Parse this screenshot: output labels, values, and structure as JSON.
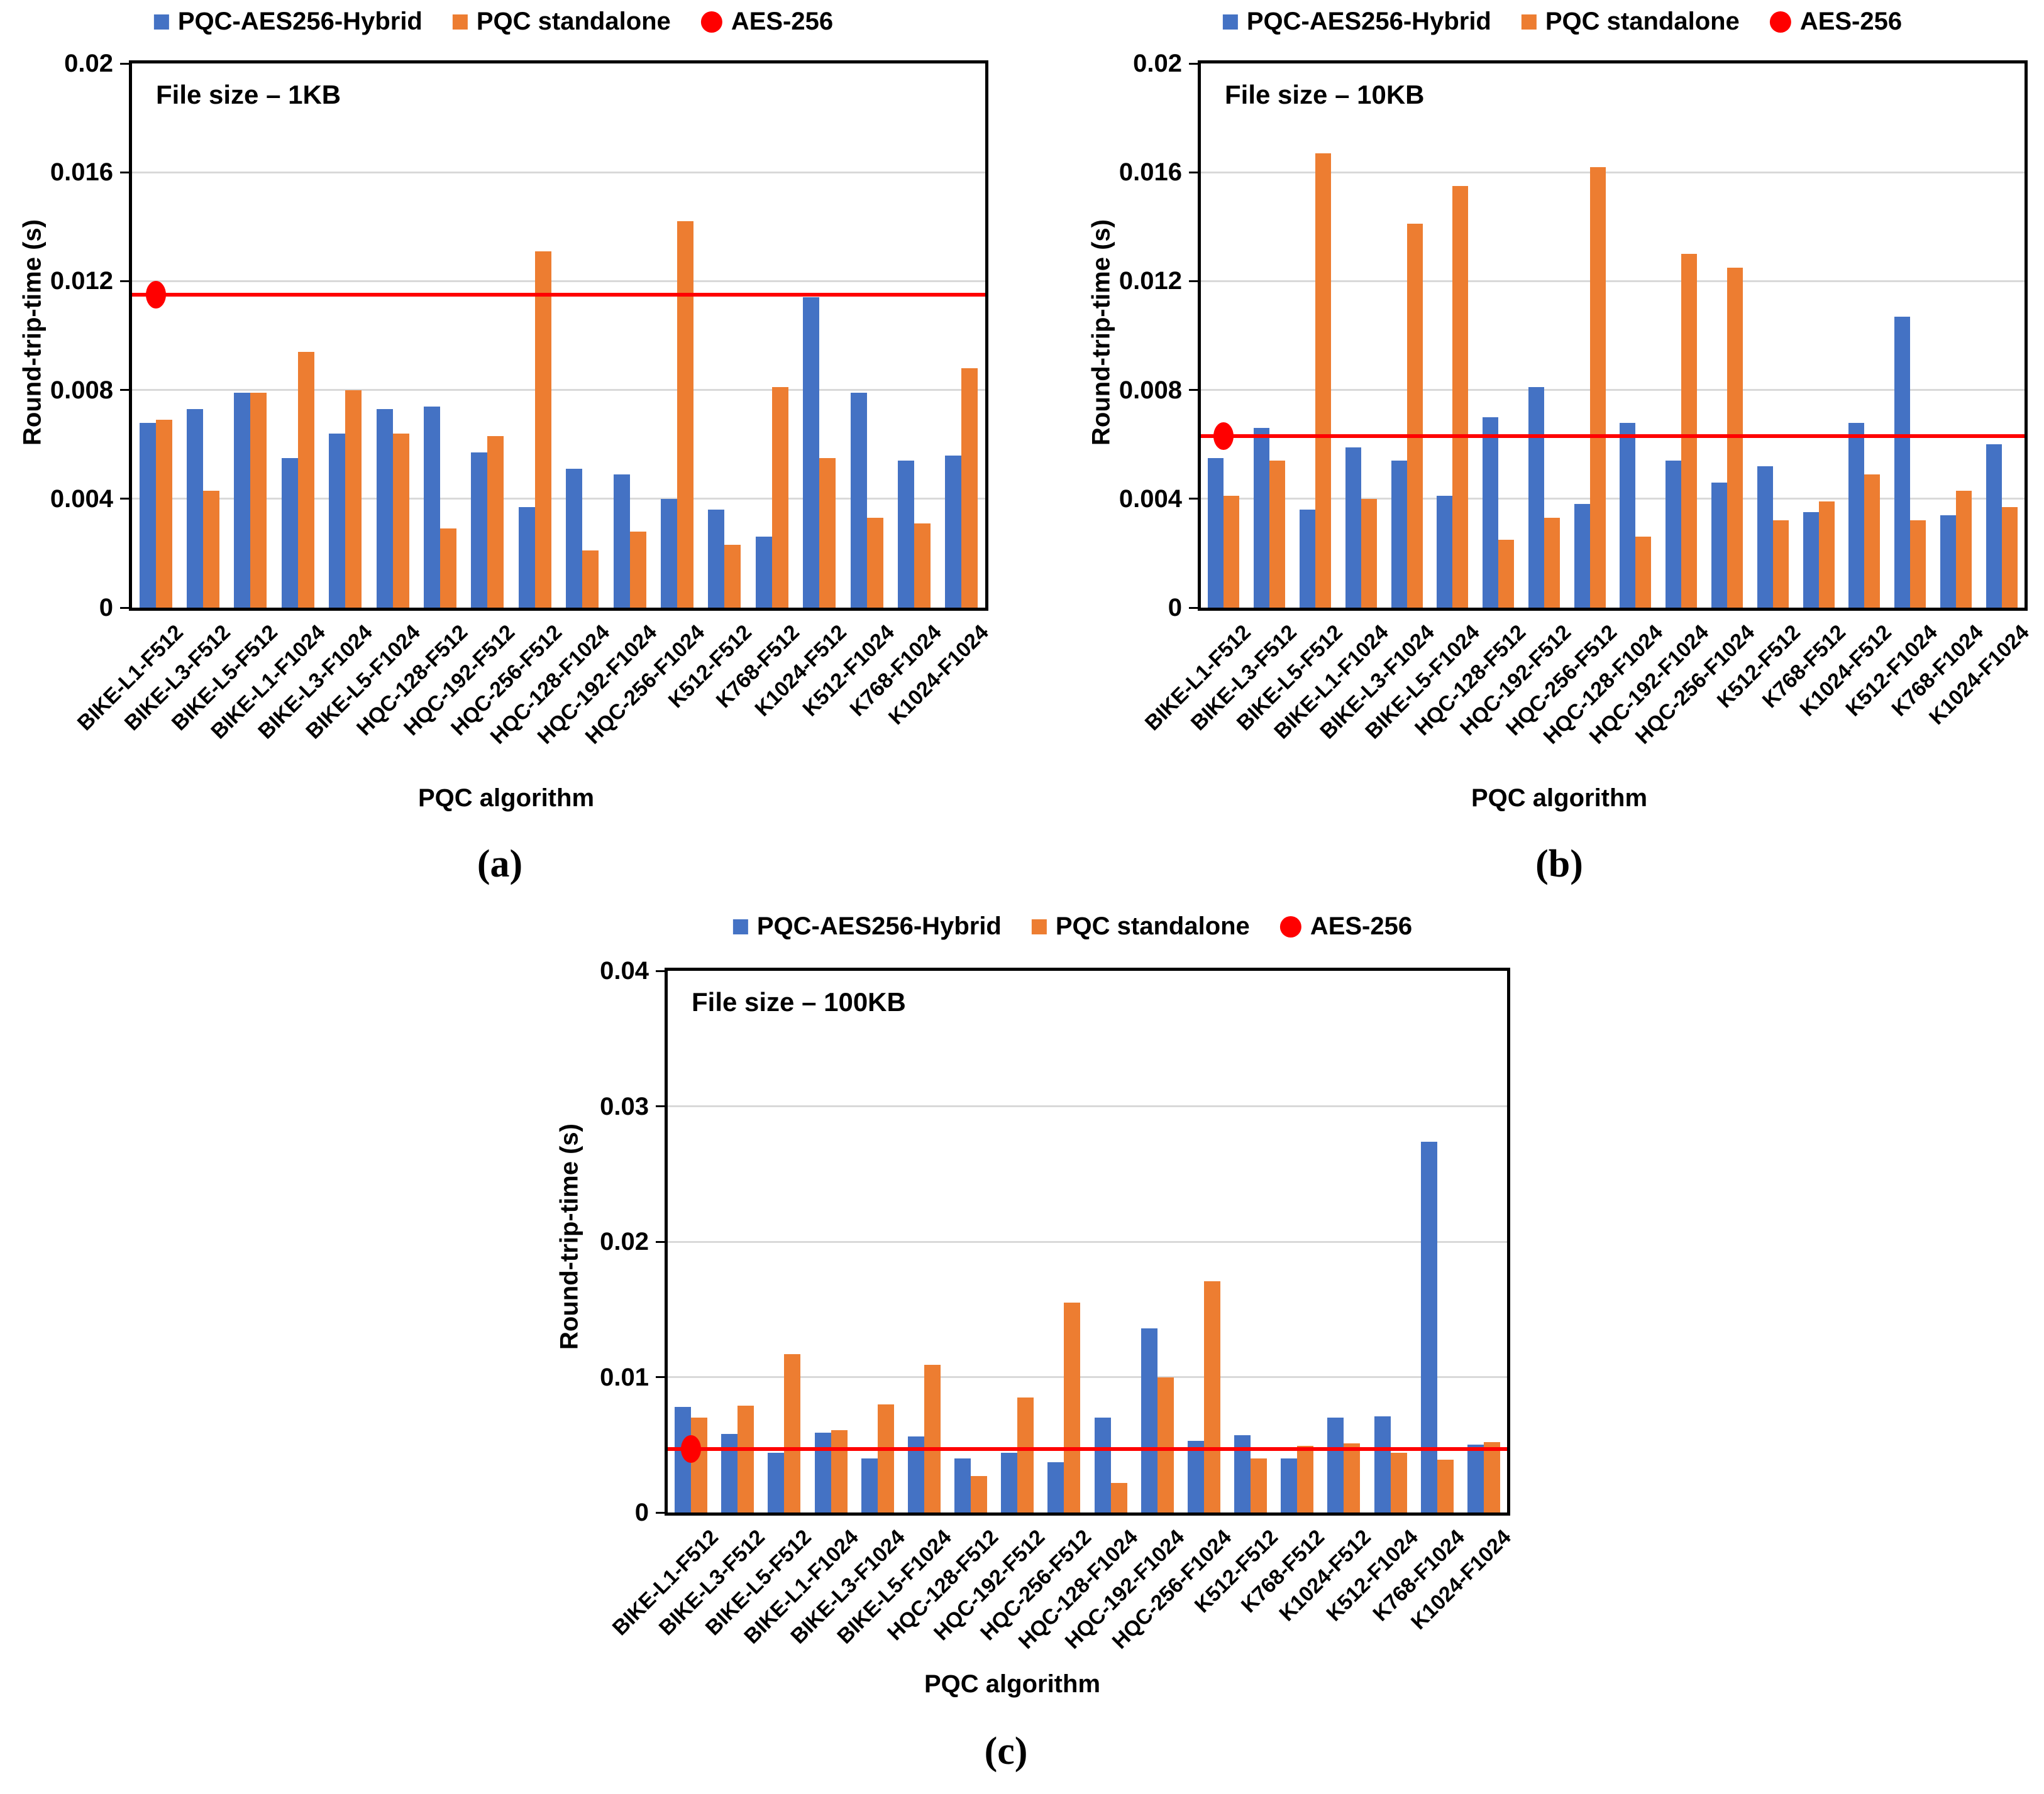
{
  "figure": {
    "legend": [
      {
        "label": "PQC-AES256-Hybrid",
        "color": "#4472C4",
        "marker": "square"
      },
      {
        "label": "PQC standalone",
        "color": "#ED7D31",
        "marker": "square"
      },
      {
        "label": "AES-256",
        "color": "#FF0000",
        "marker": "circle"
      }
    ]
  },
  "chart_data": [
    {
      "id": "a",
      "type": "bar",
      "caption": "(a)",
      "annotation": "File size – 1KB",
      "xlabel": "PQC algorithm",
      "ylabel": "Round-trip-time (s)",
      "ylim": [
        0,
        0.02
      ],
      "grid": true,
      "legend_position": "top",
      "yticks": [
        {
          "label": "0.02",
          "value": 0.02
        },
        {
          "label": "0.016",
          "value": 0.016
        },
        {
          "label": "0.012",
          "value": 0.012
        },
        {
          "label": "0.008",
          "value": 0.008
        },
        {
          "label": "0.004",
          "value": 0.004
        },
        {
          "label": "0",
          "value": 0
        }
      ],
      "categories": [
        "BIKE-L1-F512",
        "BIKE-L3-F512",
        "BIKE-L5-F512",
        "BIKE-L1-F1024",
        "BIKE-L3-F1024",
        "BIKE-L5-F1024",
        "HQC-128-F512",
        "HQC-192-F512",
        "HQC-256-F512",
        "HQC-128-F1024",
        "HQC-192-F1024",
        "HQC-256-F1024",
        "K512-F512",
        "K768-F512",
        "K1024-F512",
        "K512-F1024",
        "K768-F1024",
        "K1024-F1024"
      ],
      "series": [
        {
          "name": "PQC-AES256-Hybrid",
          "color": "#4472C4",
          "values": [
            0.0068,
            0.0073,
            0.0079,
            0.0055,
            0.0064,
            0.0073,
            0.0074,
            0.0057,
            0.0037,
            0.0051,
            0.0049,
            0.004,
            0.0036,
            0.0026,
            0.0114,
            0.0079,
            0.0054,
            0.0056
          ]
        },
        {
          "name": "PQC standalone",
          "color": "#ED7D31",
          "values": [
            0.0069,
            0.0043,
            0.0079,
            0.0094,
            0.008,
            0.0064,
            0.0029,
            0.0063,
            0.0131,
            0.0021,
            0.0028,
            0.0142,
            0.0023,
            0.0081,
            0.0055,
            0.0033,
            0.0031,
            0.0088
          ]
        }
      ],
      "aes256_line": {
        "name": "AES-256",
        "color": "#FF0000",
        "value": 0.0115
      }
    },
    {
      "id": "b",
      "type": "bar",
      "caption": "(b)",
      "annotation": "File size – 10KB",
      "xlabel": "PQC algorithm",
      "ylabel": "Round-trip-time (s)",
      "ylim": [
        0,
        0.02
      ],
      "grid": true,
      "legend_position": "top",
      "yticks": [
        {
          "label": "0.02",
          "value": 0.02
        },
        {
          "label": "0.016",
          "value": 0.016
        },
        {
          "label": "0.012",
          "value": 0.012
        },
        {
          "label": "0.008",
          "value": 0.008
        },
        {
          "label": "0.004",
          "value": 0.004
        },
        {
          "label": "0",
          "value": 0
        }
      ],
      "categories": [
        "BIKE-L1-F512",
        "BIKE-L3-F512",
        "BIKE-L5-F512",
        "BIKE-L1-F1024",
        "BIKE-L3-F1024",
        "BIKE-L5-F1024",
        "HQC-128-F512",
        "HQC-192-F512",
        "HQC-256-F512",
        "HQC-128-F1024",
        "HQC-192-F1024",
        "HQC-256-F1024",
        "K512-F512",
        "K768-F512",
        "K1024-F512",
        "K512-F1024",
        "K768-F1024",
        "K1024-F1024"
      ],
      "series": [
        {
          "name": "PQC-AES256-Hybrid",
          "color": "#4472C4",
          "values": [
            0.0055,
            0.0066,
            0.0036,
            0.0059,
            0.0054,
            0.0041,
            0.007,
            0.0081,
            0.0038,
            0.0068,
            0.0054,
            0.0046,
            0.0052,
            0.0035,
            0.0068,
            0.0107,
            0.0034,
            0.006
          ]
        },
        {
          "name": "PQC standalone",
          "color": "#ED7D31",
          "values": [
            0.0041,
            0.0054,
            0.0167,
            0.004,
            0.0141,
            0.0155,
            0.0025,
            0.0033,
            0.0162,
            0.0026,
            0.013,
            0.0125,
            0.0032,
            0.0039,
            0.0049,
            0.0032,
            0.0043,
            0.0037
          ]
        }
      ],
      "aes256_line": {
        "name": "AES-256",
        "color": "#FF0000",
        "value": 0.0063
      }
    },
    {
      "id": "c",
      "type": "bar",
      "caption": "(c)",
      "annotation": "File size – 100KB",
      "xlabel": "PQC algorithm",
      "ylabel": "Round-trip-time (s)",
      "ylim": [
        0,
        0.04
      ],
      "grid": true,
      "legend_position": "top",
      "yticks": [
        {
          "label": "0.04",
          "value": 0.04
        },
        {
          "label": "0.03",
          "value": 0.03
        },
        {
          "label": "0.02",
          "value": 0.02
        },
        {
          "label": "0.01",
          "value": 0.01
        },
        {
          "label": "0",
          "value": 0
        }
      ],
      "categories": [
        "BIKE-L1-F512",
        "BIKE-L3-F512",
        "BIKE-L5-F512",
        "BIKE-L1-F1024",
        "BIKE-L3-F1024",
        "BIKE-L5-F1024",
        "HQC-128-F512",
        "HQC-192-F512",
        "HQC-256-F512",
        "HQC-128-F1024",
        "HQC-192-F1024",
        "HQC-256-F1024",
        "K512-F512",
        "K768-F512",
        "K1024-F512",
        "K512-F1024",
        "K768-F1024",
        "K1024-F1024"
      ],
      "series": [
        {
          "name": "PQC-AES256-Hybrid",
          "color": "#4472C4",
          "values": [
            0.0078,
            0.0058,
            0.0044,
            0.0059,
            0.004,
            0.0056,
            0.004,
            0.0044,
            0.0037,
            0.007,
            0.0136,
            0.0053,
            0.0057,
            0.004,
            0.007,
            0.0071,
            0.0274,
            0.005
          ]
        },
        {
          "name": "PQC standalone",
          "color": "#ED7D31",
          "values": [
            0.007,
            0.0079,
            0.0117,
            0.0061,
            0.008,
            0.0109,
            0.0027,
            0.0085,
            0.0155,
            0.0022,
            0.01,
            0.0171,
            0.004,
            0.0049,
            0.0051,
            0.0044,
            0.0039,
            0.0052
          ]
        }
      ],
      "aes256_line": {
        "name": "AES-256",
        "color": "#FF0000",
        "value": 0.0047
      }
    }
  ]
}
